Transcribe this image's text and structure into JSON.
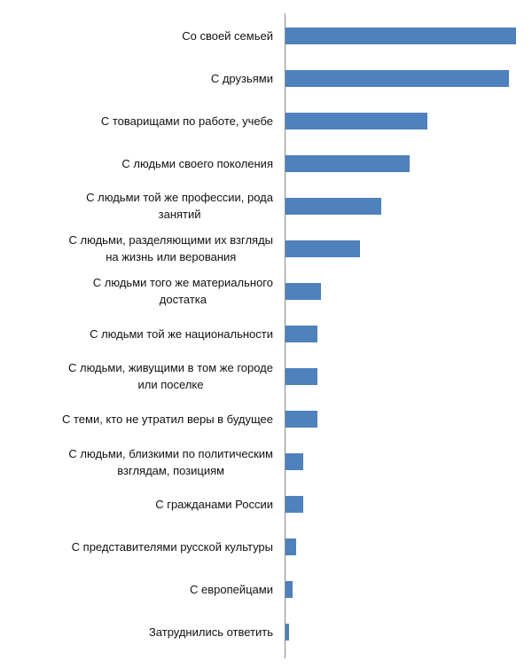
{
  "chart_data": {
    "type": "bar",
    "orientation": "horizontal",
    "categories": [
      "Со своей семьей",
      "С друзьями",
      "С товарищами по работе, учебе",
      "С людьми своего поколения",
      "С людьми той же профессии, рода\nзанятий",
      "С людьми, разделяющими их взгляды\nна жизнь или верования",
      "С людьми того же материального\nдостатка",
      "С людьми той же национальности",
      "С людьми, живущими в том же городе\nили поселке",
      "С теми, кто не утратил веры в будущее",
      "С людьми, близкими по политическим\nвзглядам, позициям",
      "С гражданами России",
      "С представителями русской культуры",
      "С европейцами",
      "Затруднились ответить"
    ],
    "values": [
      65,
      63,
      40,
      35,
      27,
      21,
      10,
      9,
      9,
      9,
      5,
      5,
      3,
      2,
      1
    ],
    "color": "#4f81bd",
    "xlim": [
      0,
      65
    ]
  }
}
